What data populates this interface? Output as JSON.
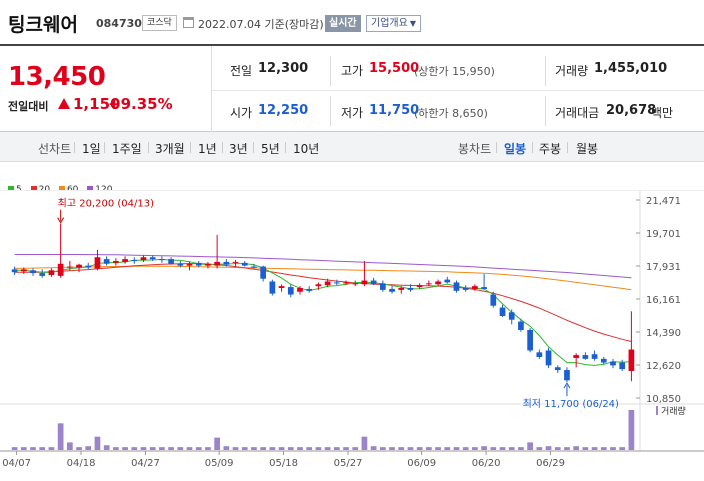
{
  "header": {
    "title": "팅크웨어",
    "code": "084730",
    "market": "코스닥",
    "date": "2022.07.04 기준(장마감)",
    "realtime_label": "실시간",
    "overview_label": "기업개요"
  },
  "price": {
    "current": "13,450",
    "change_label": "전일대비",
    "change": "1,150",
    "change_pct": "+9.35%",
    "direction": "up",
    "prev_close_label": "전일",
    "prev_close": "12,300",
    "high_label": "고가",
    "high": "15,500",
    "upper_limit": "(상한가 15,950)",
    "volume_label": "거래량",
    "volume": "1,455,010",
    "open_label": "시가",
    "open": "12,250",
    "low_label": "저가",
    "low": "11,750",
    "lower_limit": "(하한가 8,650)",
    "value_label": "거래대금",
    "value": "20,678",
    "value_unit": "백만"
  },
  "periods": {
    "line_label": "선차트",
    "items": [
      "1일",
      "1주일",
      "3개월",
      "1년",
      "3년",
      "5년",
      "10년"
    ],
    "candle_label": "봉차트",
    "candle_items": [
      "일봉",
      "주봉",
      "월봉"
    ],
    "active_candle": "일봉"
  },
  "legend": [
    {
      "label": "5",
      "color": "#2db82d"
    },
    {
      "label": "20",
      "color": "#e03030"
    },
    {
      "label": "60",
      "color": "#f08a1c"
    },
    {
      "label": "120",
      "color": "#9b59c9"
    }
  ],
  "colors": {
    "up": "#e0001b",
    "down": "#1b5fd0"
  },
  "chart_data": {
    "type": "candlestick",
    "y_ticks": [
      "21,471",
      "19,701",
      "17,931",
      "16,161",
      "14,390",
      "12,620",
      "10,850"
    ],
    "ylim": [
      10850,
      21471
    ],
    "x_ticks": [
      "04/07",
      "04/18",
      "04/27",
      "05/09",
      "05/18",
      "05/27",
      "06/09",
      "06/20",
      "06/29"
    ],
    "max_annotation": "최고 20,200 (04/13)",
    "min_annotation": "최저 11,700 (06/24)",
    "volume_label": "거래량",
    "candles": [
      {
        "o": 17750,
        "h": 17900,
        "l": 17450,
        "c": 17600
      },
      {
        "o": 17650,
        "h": 17850,
        "l": 17500,
        "c": 17750
      },
      {
        "o": 17700,
        "h": 17800,
        "l": 17400,
        "c": 17550
      },
      {
        "o": 17550,
        "h": 17750,
        "l": 17300,
        "c": 17400
      },
      {
        "o": 17450,
        "h": 17800,
        "l": 17350,
        "c": 17700
      },
      {
        "o": 17400,
        "h": 20200,
        "l": 17300,
        "c": 18050
      },
      {
        "o": 17900,
        "h": 18200,
        "l": 17700,
        "c": 17900
      },
      {
        "o": 17850,
        "h": 18050,
        "l": 17600,
        "c": 18000
      },
      {
        "o": 17950,
        "h": 18100,
        "l": 17750,
        "c": 17850
      },
      {
        "o": 17800,
        "h": 18800,
        "l": 17700,
        "c": 18400
      },
      {
        "o": 18300,
        "h": 18450,
        "l": 17950,
        "c": 18050
      },
      {
        "o": 18100,
        "h": 18350,
        "l": 17950,
        "c": 18200
      },
      {
        "o": 18150,
        "h": 18450,
        "l": 18050,
        "c": 18300
      },
      {
        "o": 18250,
        "h": 18400,
        "l": 18050,
        "c": 18200
      },
      {
        "o": 18250,
        "h": 18500,
        "l": 18150,
        "c": 18400
      },
      {
        "o": 18400,
        "h": 18500,
        "l": 18200,
        "c": 18300
      },
      {
        "o": 18300,
        "h": 18450,
        "l": 18100,
        "c": 18250
      },
      {
        "o": 18300,
        "h": 18400,
        "l": 18000,
        "c": 18050
      },
      {
        "o": 18050,
        "h": 18200,
        "l": 17850,
        "c": 17950
      },
      {
        "o": 17950,
        "h": 18150,
        "l": 17700,
        "c": 18050
      },
      {
        "o": 18100,
        "h": 18200,
        "l": 17850,
        "c": 17950
      },
      {
        "o": 17950,
        "h": 18150,
        "l": 17800,
        "c": 18050
      },
      {
        "o": 17950,
        "h": 19600,
        "l": 17800,
        "c": 18150
      },
      {
        "o": 18150,
        "h": 18300,
        "l": 17900,
        "c": 18000
      },
      {
        "o": 18100,
        "h": 18250,
        "l": 17900,
        "c": 18150
      },
      {
        "o": 18100,
        "h": 18200,
        "l": 17900,
        "c": 17950
      },
      {
        "o": 17900,
        "h": 18050,
        "l": 17800,
        "c": 17850
      },
      {
        "o": 17900,
        "h": 17950,
        "l": 17100,
        "c": 17250
      },
      {
        "o": 17100,
        "h": 17200,
        "l": 16350,
        "c": 16450
      },
      {
        "o": 16750,
        "h": 16950,
        "l": 16550,
        "c": 16850
      },
      {
        "o": 16800,
        "h": 16950,
        "l": 16250,
        "c": 16400
      },
      {
        "o": 16550,
        "h": 16850,
        "l": 16400,
        "c": 16750
      },
      {
        "o": 16700,
        "h": 16850,
        "l": 16500,
        "c": 16600
      },
      {
        "o": 16850,
        "h": 17050,
        "l": 16650,
        "c": 16950
      },
      {
        "o": 16900,
        "h": 17250,
        "l": 16800,
        "c": 17100
      },
      {
        "o": 17050,
        "h": 17200,
        "l": 16900,
        "c": 17000
      },
      {
        "o": 17000,
        "h": 17150,
        "l": 16900,
        "c": 17050
      },
      {
        "o": 16950,
        "h": 17150,
        "l": 16850,
        "c": 17000
      },
      {
        "o": 16950,
        "h": 18200,
        "l": 16850,
        "c": 17150
      },
      {
        "o": 17150,
        "h": 17300,
        "l": 16900,
        "c": 16950
      },
      {
        "o": 17000,
        "h": 17150,
        "l": 16550,
        "c": 16650
      },
      {
        "o": 16700,
        "h": 16850,
        "l": 16450,
        "c": 16550
      },
      {
        "o": 16650,
        "h": 16850,
        "l": 16450,
        "c": 16750
      },
      {
        "o": 16750,
        "h": 16950,
        "l": 16550,
        "c": 16650
      },
      {
        "o": 16800,
        "h": 17000,
        "l": 16700,
        "c": 16900
      },
      {
        "o": 16950,
        "h": 17150,
        "l": 16850,
        "c": 17000
      },
      {
        "o": 16950,
        "h": 17200,
        "l": 16850,
        "c": 17100
      },
      {
        "o": 17200,
        "h": 17350,
        "l": 17000,
        "c": 17050
      },
      {
        "o": 17050,
        "h": 17150,
        "l": 16500,
        "c": 16600
      },
      {
        "o": 16750,
        "h": 16900,
        "l": 16550,
        "c": 16650
      },
      {
        "o": 16700,
        "h": 16950,
        "l": 16600,
        "c": 16850
      },
      {
        "o": 16800,
        "h": 17500,
        "l": 16700,
        "c": 16700
      },
      {
        "o": 16400,
        "h": 16550,
        "l": 15700,
        "c": 15800
      },
      {
        "o": 15700,
        "h": 15850,
        "l": 15200,
        "c": 15250
      },
      {
        "o": 15450,
        "h": 15600,
        "l": 14800,
        "c": 15050
      },
      {
        "o": 14950,
        "h": 15100,
        "l": 14400,
        "c": 14500
      },
      {
        "o": 14500,
        "h": 14600,
        "l": 13300,
        "c": 13400
      },
      {
        "o": 13300,
        "h": 13450,
        "l": 12950,
        "c": 13050
      },
      {
        "o": 13400,
        "h": 13550,
        "l": 12450,
        "c": 12600
      },
      {
        "o": 12500,
        "h": 12600,
        "l": 12200,
        "c": 12350
      },
      {
        "o": 12350,
        "h": 12500,
        "l": 11700,
        "c": 11800
      },
      {
        "o": 13000,
        "h": 13250,
        "l": 12500,
        "c": 13150
      },
      {
        "o": 13150,
        "h": 13300,
        "l": 12900,
        "c": 12950
      },
      {
        "o": 13200,
        "h": 13400,
        "l": 12850,
        "c": 12950
      },
      {
        "o": 12950,
        "h": 13050,
        "l": 12650,
        "c": 12750
      },
      {
        "o": 12800,
        "h": 12950,
        "l": 12450,
        "c": 12600
      },
      {
        "o": 12750,
        "h": 12900,
        "l": 12300,
        "c": 12400
      },
      {
        "o": 12300,
        "h": 15500,
        "l": 11750,
        "c": 13450
      }
    ],
    "volumes": [
      3,
      3,
      3,
      3,
      3,
      28,
      8,
      3,
      4,
      14,
      5,
      3,
      3,
      3,
      3,
      3,
      3,
      3,
      3,
      3,
      3,
      3,
      13,
      4,
      3,
      3,
      3,
      3,
      3,
      3,
      3,
      3,
      3,
      3,
      3,
      3,
      3,
      3,
      14,
      4,
      3,
      3,
      3,
      3,
      3,
      3,
      3,
      3,
      3,
      3,
      3,
      4,
      3,
      3,
      3,
      3,
      8,
      3,
      4,
      3,
      3,
      4,
      3,
      3,
      3,
      3,
      3,
      42
    ],
    "ma5": [
      17700,
      17700,
      17650,
      17600,
      17580,
      17700,
      17780,
      17840,
      17880,
      18060,
      18120,
      18110,
      18150,
      18240,
      18240,
      18260,
      18280,
      18250,
      18230,
      18160,
      18050,
      18000,
      18030,
      18040,
      18060,
      18060,
      18000,
      17820,
      17560,
      17280,
      16950,
      16740,
      16610,
      16720,
      16840,
      16880,
      16950,
      17030,
      17060,
      17040,
      16970,
      16880,
      16800,
      16700,
      16710,
      16780,
      16860,
      16960,
      16850,
      16760,
      16750,
      16690,
      16400,
      15900,
      15450,
      15050,
      14700,
      14200,
      13600,
      13150,
      12750,
      12750,
      12640,
      12600,
      12660,
      12800,
      12770,
      12800
    ],
    "ma20": [
      17600,
      17600,
      17600,
      17600,
      17620,
      17650,
      17680,
      17710,
      17740,
      17780,
      17820,
      17860,
      17900,
      17940,
      17970,
      18000,
      18020,
      18040,
      18050,
      18060,
      18060,
      18040,
      18000,
      17960,
      17900,
      17830,
      17760,
      17690,
      17610,
      17530,
      17450,
      17380,
      17300,
      17240,
      17180,
      17120,
      17070,
      17020,
      16990,
      16960,
      16940,
      16920,
      16900,
      16890,
      16880,
      16870,
      16850,
      16830,
      16790,
      16740,
      16670,
      16580,
      16470,
      16340,
      16190,
      16030,
      15860,
      15670,
      15460,
      15240,
      15020,
      14820,
      14620,
      14440,
      14280,
      14140,
      14000,
      13880
    ],
    "ma60": [
      17800,
      17810,
      17820,
      17830,
      17840,
      17850,
      17860,
      17870,
      17880,
      17890,
      17900,
      17905,
      17910,
      17915,
      17920,
      17920,
      17920,
      17915,
      17910,
      17900,
      17890,
      17880,
      17870,
      17860,
      17850,
      17840,
      17830,
      17815,
      17800,
      17790,
      17780,
      17770,
      17760,
      17750,
      17740,
      17730,
      17720,
      17710,
      17705,
      17700,
      17690,
      17680,
      17670,
      17660,
      17650,
      17640,
      17630,
      17620,
      17600,
      17580,
      17560,
      17540,
      17510,
      17480,
      17440,
      17400,
      17350,
      17300,
      17240,
      17180,
      17120,
      17050,
      16990,
      16920,
      16860,
      16790,
      16730,
      16660
    ],
    "ma120": [
      18550,
      18550,
      18550,
      18550,
      18550,
      18550,
      18550,
      18550,
      18540,
      18540,
      18530,
      18530,
      18520,
      18510,
      18500,
      18490,
      18480,
      18470,
      18460,
      18450,
      18440,
      18430,
      18420,
      18410,
      18395,
      18380,
      18365,
      18350,
      18330,
      18310,
      18290,
      18270,
      18250,
      18230,
      18210,
      18190,
      18170,
      18150,
      18130,
      18110,
      18090,
      18070,
      18050,
      18030,
      18010,
      17990,
      17970,
      17950,
      17930,
      17910,
      17880,
      17850,
      17820,
      17790,
      17760,
      17730,
      17700,
      17670,
      17640,
      17610,
      17580,
      17540,
      17500,
      17460,
      17420,
      17380,
      17340,
      17300
    ]
  }
}
